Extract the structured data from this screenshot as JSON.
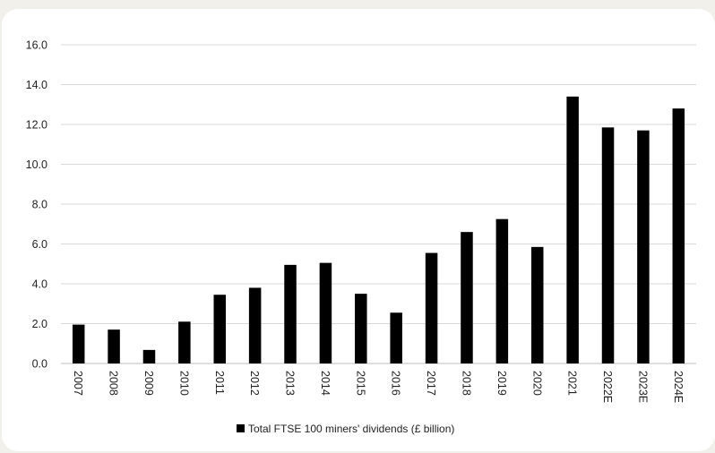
{
  "chart_data": {
    "type": "bar",
    "categories": [
      "2007",
      "2008",
      "2009",
      "2010",
      "2011",
      "2012",
      "2013",
      "2014",
      "2015",
      "2016",
      "2017",
      "2018",
      "2019",
      "2020",
      "2021",
      "2022E",
      "2023E",
      "2024E"
    ],
    "series": [
      {
        "name": "Total FTSE 100 miners' dividends (£ billion)",
        "values": [
          1.95,
          1.7,
          0.68,
          2.1,
          3.45,
          3.8,
          4.95,
          5.05,
          3.5,
          2.55,
          5.55,
          6.6,
          7.25,
          5.85,
          13.4,
          11.85,
          11.7,
          12.8
        ]
      }
    ],
    "y_ticks": [
      "0.0",
      "2.0",
      "4.0",
      "6.0",
      "8.0",
      "10.0",
      "12.0",
      "14.0",
      "16.0"
    ],
    "ylim": [
      0,
      16
    ],
    "grid": true,
    "legend_position": "bottom-center",
    "colors": {
      "bar": "#000000",
      "grid": "#d9d9d9",
      "axis_text": "#222222"
    }
  }
}
